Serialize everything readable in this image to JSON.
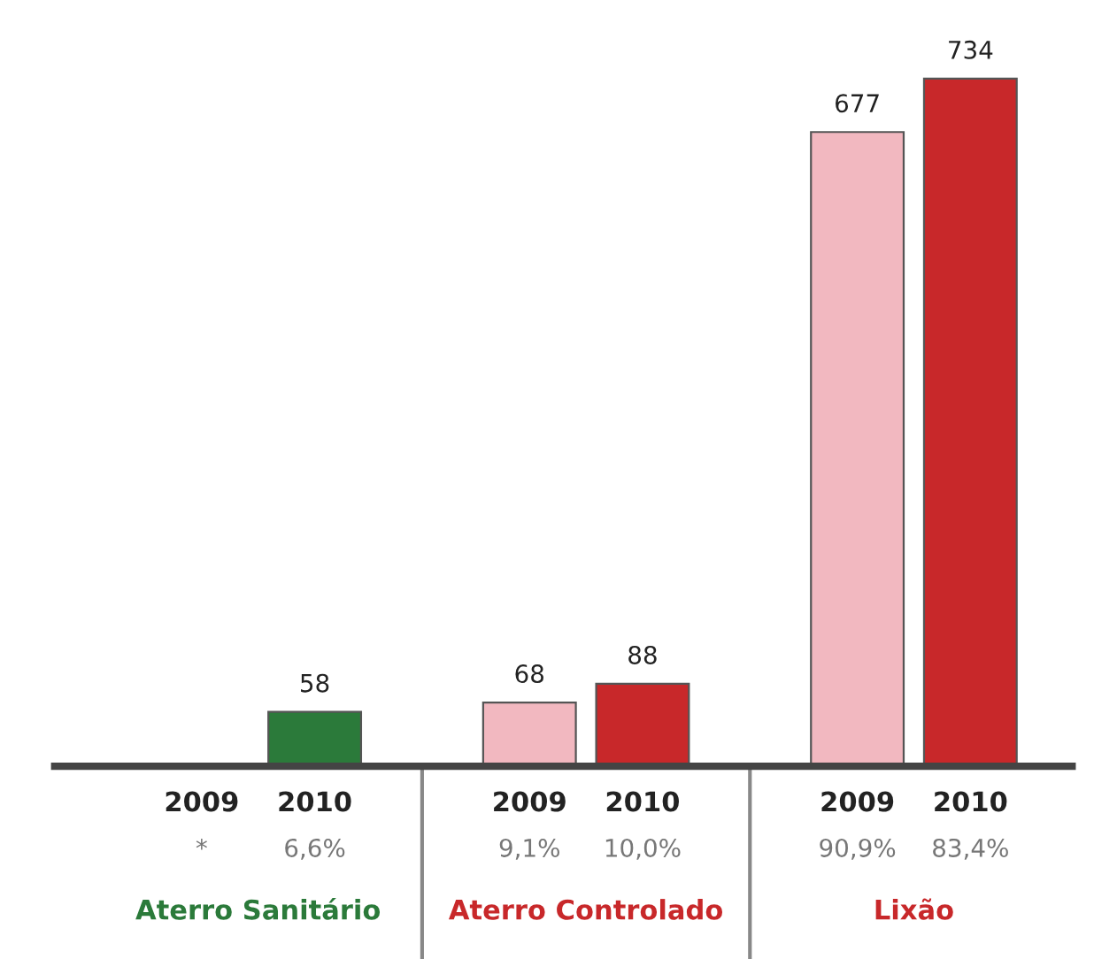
{
  "chart_data": {
    "type": "bar",
    "categories": [
      "2009",
      "2010",
      "2009",
      "2010",
      "2009",
      "2010"
    ],
    "values": [
      null,
      58,
      68,
      88,
      677,
      734
    ],
    "colors": [
      "#f2b8c0",
      "#2b7a3a",
      "#f2b8c0",
      "#c8282a",
      "#f2b8c0",
      "#c8282a"
    ],
    "data_labels": true,
    "annotations": [
      "*",
      "6,6%",
      "9,1%",
      "10,0%",
      "90,9%",
      "83,4%",
      "Aterro Sanitário",
      "Aterro Controlado",
      "Lixão"
    ]
  }
}
